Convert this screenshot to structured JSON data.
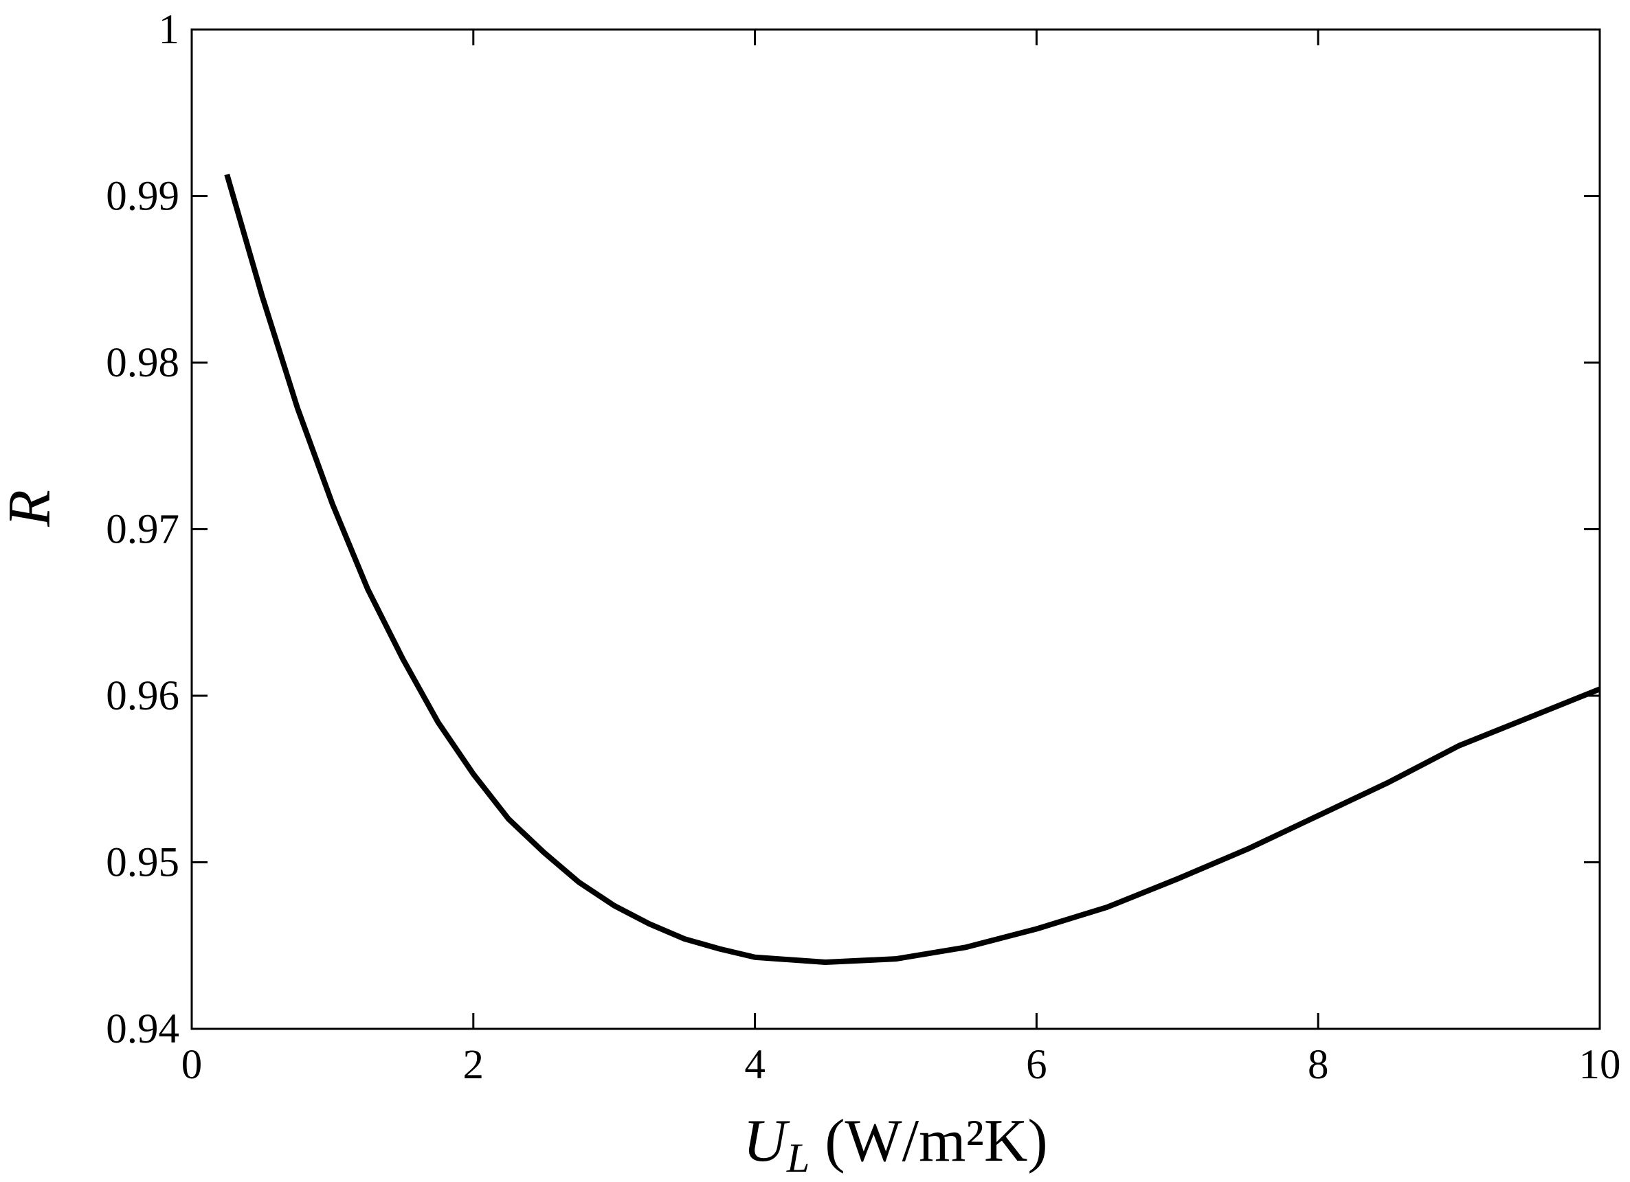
{
  "chart_data": {
    "type": "line",
    "x_label": {
      "symbol": "U",
      "subscript": "L",
      "unit": "(W/m²K)"
    },
    "y_label": "R",
    "x": [
      0.25,
      0.5,
      0.75,
      1.0,
      1.25,
      1.5,
      1.75,
      2.0,
      2.25,
      2.5,
      2.75,
      3.0,
      3.25,
      3.5,
      3.75,
      4.0,
      4.5,
      5.0,
      5.5,
      6.0,
      6.5,
      7.0,
      7.5,
      8.0,
      8.5,
      9.0,
      9.5,
      10.0
    ],
    "series": [
      {
        "color": "#000000",
        "values": [
          0.9913,
          0.984,
          0.9773,
          0.9715,
          0.9664,
          0.9622,
          0.9584,
          0.9553,
          0.9526,
          0.9506,
          0.9488,
          0.9474,
          0.9463,
          0.9454,
          0.9448,
          0.9443,
          0.944,
          0.9442,
          0.9449,
          0.946,
          0.9473,
          0.949,
          0.9508,
          0.9528,
          0.9548,
          0.957,
          0.9587,
          0.9604
        ]
      }
    ],
    "xlim": [
      0,
      10
    ],
    "xticks": [
      0,
      2,
      4,
      6,
      8,
      10
    ],
    "ylim": [
      0.94,
      1
    ],
    "yticks": [
      0.94,
      0.95,
      0.96,
      0.97,
      0.98,
      0.99,
      1
    ],
    "grid": false
  }
}
